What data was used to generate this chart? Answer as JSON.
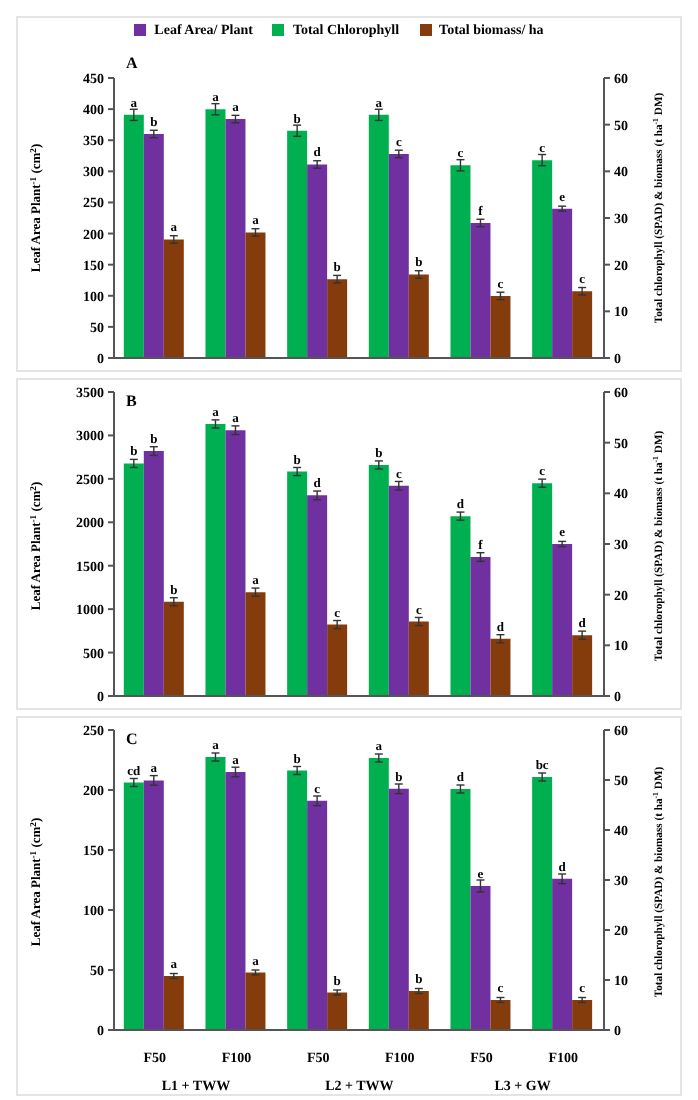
{
  "chart_data": [
    {
      "type": "bar",
      "title": "A",
      "ylabel": "Leaf Area Plant$^{-1}$ (cm$^{2}$)",
      "y2label": "Total chlorophyll (SPAD) & biomass (t ha$^{-1}$ DM)",
      "categories": [
        null,
        null,
        null,
        null,
        null,
        null
      ],
      "ylim": [
        0,
        450
      ],
      "yticks": [
        0,
        50,
        100,
        150,
        200,
        250,
        300,
        350,
        400,
        450
      ],
      "y2lim": [
        0,
        60
      ],
      "y2ticks": [
        0,
        10,
        20,
        30,
        40,
        50,
        60
      ],
      "legend": "top",
      "series": [
        {
          "name": "Total Chlorophyll",
          "color": "#00b050",
          "axis": "y2",
          "values": [
            52.1,
            53.3,
            48.7,
            52.1,
            41.3,
            42.4
          ],
          "errors": [
            1.2,
            1.2,
            1.2,
            1.2,
            1.2,
            1.2
          ],
          "value_labels": [
            "a",
            "a",
            "b",
            "a",
            "c",
            "c"
          ]
        },
        {
          "name": "Leaf Area/ Plant",
          "color": "#7030a0",
          "values": [
            360,
            384,
            311,
            328,
            217,
            240
          ],
          "errors": [
            6,
            6,
            6,
            6,
            6,
            4
          ],
          "value_labels": [
            "b",
            "a",
            "d",
            "c",
            "f",
            "e"
          ]
        },
        {
          "name": "Total biomass/ ha",
          "color": "#843c0c",
          "axis": "y2",
          "values": [
            25.4,
            26.9,
            16.9,
            17.9,
            13.3,
            14.3
          ],
          "errors": [
            0.8,
            0.8,
            0.8,
            0.8,
            0.8,
            0.8
          ],
          "value_labels": [
            "a",
            "a",
            "b",
            "b",
            "c",
            "c"
          ]
        }
      ]
    },
    {
      "type": "bar",
      "title": "B",
      "ylabel": "Leaf Area Plant$^{-1}$ (cm$^{2}$)",
      "y2label": "Total chlorophyll (SPAD) & biomass (t ha$^{-1}$ DM)",
      "categories": [
        null,
        null,
        null,
        null,
        null,
        null
      ],
      "ylim": [
        0,
        3500
      ],
      "yticks": [
        0,
        500,
        1000,
        1500,
        2000,
        2500,
        3000,
        3500
      ],
      "y2lim": [
        0,
        60
      ],
      "y2ticks": [
        0,
        10,
        20,
        30,
        40,
        50,
        60
      ],
      "series": [
        {
          "color": "#00b050",
          "axis": "y2",
          "values": [
            45.9,
            53.7,
            44.3,
            45.6,
            35.5,
            42
          ],
          "errors": [
            0.8,
            0.8,
            0.8,
            0.8,
            0.8,
            0.8
          ],
          "value_labels": [
            "b",
            "a",
            "b",
            "b",
            "d",
            "c"
          ]
        },
        {
          "color": "#7030a0",
          "values": [
            2820,
            3060,
            2310,
            2420,
            1600,
            1750
          ],
          "errors": [
            50,
            50,
            50,
            50,
            50,
            30
          ],
          "value_labels": [
            "b",
            "a",
            "d",
            "c",
            "f",
            "e"
          ]
        },
        {
          "color": "#843c0c",
          "axis": "y2",
          "values": [
            18.6,
            20.5,
            14.1,
            14.7,
            11.3,
            12
          ],
          "errors": [
            0.8,
            0.8,
            0.8,
            0.8,
            0.8,
            0.8
          ],
          "value_labels": [
            "b",
            "a",
            "c",
            "c",
            "d",
            "d"
          ]
        }
      ]
    },
    {
      "type": "bar",
      "title": "C",
      "ylabel": "Leaf Area Plant$^{-1}$ (cm$^{2}$)",
      "y2label": "Total chlorophyll (SPAD) & biomass (t ha$^{-1}$ DM)",
      "categories": [
        "F50",
        "F100",
        "F50",
        "F100",
        "F50",
        "F100"
      ],
      "ylim": [
        0,
        250
      ],
      "yticks": [
        0,
        50,
        100,
        150,
        200,
        250
      ],
      "y2lim": [
        0,
        60
      ],
      "y2ticks": [
        0,
        10,
        20,
        30,
        40,
        50,
        60
      ],
      "annotations": [
        "L1 + TWW",
        "L2 + TWW",
        "L3 + GW"
      ],
      "series": [
        {
          "color": "#00b050",
          "axis": "y2",
          "values": [
            49.5,
            54.6,
            51.9,
            54.4,
            48.2,
            50.6
          ],
          "errors": [
            0.8,
            0.8,
            0.8,
            0.8,
            0.8,
            0.8
          ],
          "value_labels": [
            "cd",
            "a",
            "b",
            "a",
            "d",
            "bc"
          ]
        },
        {
          "color": "#7030a0",
          "values": [
            208,
            215,
            191,
            201,
            120,
            126
          ],
          "errors": [
            4,
            4,
            4,
            4,
            5,
            4
          ],
          "value_labels": [
            "a",
            "a",
            "c",
            "b",
            "e",
            "d"
          ]
        },
        {
          "color": "#843c0c",
          "axis": "y2",
          "values": [
            10.8,
            11.5,
            7.5,
            7.8,
            6.0,
            6.0
          ],
          "errors": [
            0.5,
            0.5,
            0.5,
            0.5,
            0.5,
            0.5
          ],
          "value_labels": [
            "a",
            "a",
            "b",
            "b",
            "c",
            "c"
          ]
        }
      ]
    }
  ]
}
